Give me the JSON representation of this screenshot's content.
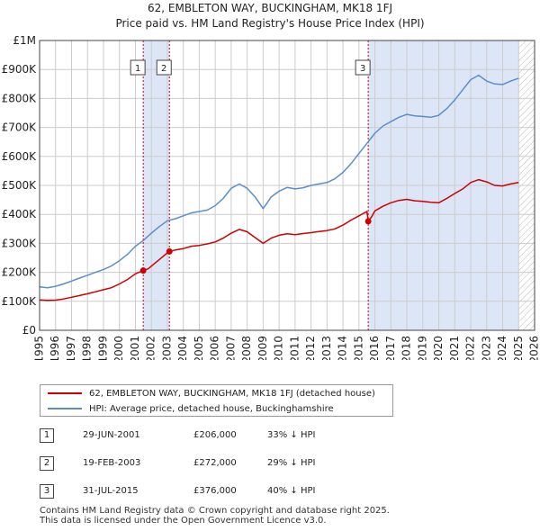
{
  "title": {
    "line1": "62, EMBLETON WAY, BUCKINGHAM, MK18 1FJ",
    "line2": "Price paid vs. HM Land Registry's House Price Index (HPI)"
  },
  "colors": {
    "price_paid": "#cc0000",
    "hpi": "#5b8ec9",
    "shade": "#dde6f6",
    "marker_line": "#cc0000",
    "grid": "#cccccc"
  },
  "legend": {
    "price_label": "62, EMBLETON WAY, BUCKINGHAM, MK18 1FJ (detached house)",
    "hpi_label": "HPI: Average price, detached house, Buckinghamshire"
  },
  "transactions": [
    {
      "num": "1",
      "date": "29-JUN-2001",
      "price": "£206,000",
      "hpi": "33% ↓ HPI"
    },
    {
      "num": "2",
      "date": "19-FEB-2003",
      "price": "£272,000",
      "hpi": "29% ↓ HPI"
    },
    {
      "num": "3",
      "date": "31-JUL-2015",
      "price": "£376,000",
      "hpi": "40% ↓ HPI"
    }
  ],
  "footer": {
    "line1": "Contains HM Land Registry data © Crown copyright and database right 2025.",
    "line2": "This data is licensed under the Open Government Licence v3.0."
  },
  "chart_data": {
    "type": "line",
    "title": "62, EMBLETON WAY, BUCKINGHAM, MK18 1FJ",
    "subtitle": "Price paid vs. HM Land Registry's House Price Index (HPI)",
    "xlabel": "",
    "ylabel": "",
    "xlim": [
      1995,
      2026
    ],
    "ylim": [
      0,
      1000000
    ],
    "grid": true,
    "x_ticks": [
      1995,
      1996,
      1997,
      1998,
      1999,
      2000,
      2001,
      2002,
      2003,
      2004,
      2005,
      2006,
      2007,
      2008,
      2009,
      2010,
      2011,
      2012,
      2013,
      2014,
      2015,
      2016,
      2017,
      2018,
      2019,
      2020,
      2021,
      2022,
      2023,
      2024,
      2025,
      2026
    ],
    "y_ticks": [
      {
        "value": 0,
        "label": "£0"
      },
      {
        "value": 100000,
        "label": "£100K"
      },
      {
        "value": 200000,
        "label": "£200K"
      },
      {
        "value": 300000,
        "label": "£300K"
      },
      {
        "value": 400000,
        "label": "£400K"
      },
      {
        "value": 500000,
        "label": "£500K"
      },
      {
        "value": 600000,
        "label": "£600K"
      },
      {
        "value": 700000,
        "label": "£700K"
      },
      {
        "value": 800000,
        "label": "£800K"
      },
      {
        "value": 900000,
        "label": "£900K"
      },
      {
        "value": 1000000,
        "label": "£1M"
      }
    ],
    "shaded_ranges": [
      [
        2001.49,
        2003.13
      ],
      [
        2015.58,
        2025.0
      ]
    ],
    "hatched_range": [
      2025.0,
      2026.0
    ],
    "markers": [
      {
        "label": "1",
        "x": 2001.49,
        "y": 206000
      },
      {
        "label": "2",
        "x": 2003.13,
        "y": 272000
      },
      {
        "label": "3",
        "x": 2015.58,
        "y": 376000
      }
    ],
    "series": [
      {
        "name": "62, EMBLETON WAY, BUCKINGHAM, MK18 1FJ (detached house)",
        "color": "#cc0000",
        "x": [
          1995,
          1995.5,
          1996,
          1996.5,
          1997,
          1997.5,
          1998,
          1998.5,
          1999,
          1999.5,
          2000,
          2000.5,
          2001,
          2001.49,
          2001.8,
          2002.3,
          2002.8,
          2003.13,
          2003.5,
          2004,
          2004.5,
          2005,
          2005.5,
          2006,
          2006.5,
          2007,
          2007.5,
          2008,
          2008.5,
          2009,
          2009.5,
          2010,
          2010.5,
          2011,
          2011.5,
          2012,
          2012.5,
          2013,
          2013.5,
          2014,
          2014.5,
          2015,
          2015.5,
          2015.58,
          2015.8,
          2016,
          2016.5,
          2017,
          2017.5,
          2018,
          2018.5,
          2019,
          2019.5,
          2020,
          2020.5,
          2021,
          2021.5,
          2022,
          2022.5,
          2023,
          2023.5,
          2024,
          2024.5,
          2025
        ],
        "y": [
          105000,
          103000,
          104000,
          108000,
          114000,
          120000,
          126000,
          133000,
          140000,
          147000,
          160000,
          175000,
          195000,
          206000,
          212000,
          235000,
          258000,
          272000,
          277000,
          282000,
          290000,
          293000,
          298000,
          305000,
          318000,
          335000,
          348000,
          340000,
          320000,
          300000,
          318000,
          328000,
          333000,
          330000,
          334000,
          337000,
          341000,
          344000,
          350000,
          363000,
          380000,
          395000,
          410000,
          376000,
          392000,
          412000,
          428000,
          440000,
          448000,
          452000,
          447000,
          445000,
          442000,
          440000,
          455000,
          472000,
          488000,
          510000,
          520000,
          512000,
          500000,
          498000,
          505000,
          510000
        ]
      },
      {
        "name": "HPI: Average price, detached house, Buckinghamshire",
        "color": "#5b8ec9",
        "x": [
          1995,
          1995.5,
          1996,
          1996.5,
          1997,
          1997.5,
          1998,
          1998.5,
          1999,
          1999.5,
          2000,
          2000.5,
          2001,
          2001.5,
          2002,
          2002.5,
          2003,
          2003.5,
          2004,
          2004.5,
          2005,
          2005.5,
          2006,
          2006.5,
          2007,
          2007.5,
          2008,
          2008.5,
          2009,
          2009.5,
          2010,
          2010.5,
          2011,
          2011.5,
          2012,
          2012.5,
          2013,
          2013.5,
          2014,
          2014.5,
          2015,
          2015.5,
          2016,
          2016.5,
          2017,
          2017.5,
          2018,
          2018.5,
          2019,
          2019.5,
          2020,
          2020.5,
          2021,
          2021.5,
          2022,
          2022.5,
          2023,
          2023.5,
          2024,
          2024.5,
          2025
        ],
        "y": [
          150000,
          147000,
          152000,
          160000,
          170000,
          180000,
          190000,
          200000,
          210000,
          222000,
          240000,
          262000,
          290000,
          310000,
          335000,
          358000,
          378000,
          385000,
          395000,
          405000,
          410000,
          415000,
          430000,
          455000,
          490000,
          505000,
          490000,
          460000,
          420000,
          460000,
          480000,
          493000,
          488000,
          492000,
          500000,
          505000,
          510000,
          523000,
          545000,
          575000,
          610000,
          645000,
          680000,
          705000,
          720000,
          735000,
          745000,
          740000,
          738000,
          735000,
          742000,
          765000,
          795000,
          830000,
          865000,
          880000,
          860000,
          850000,
          848000,
          860000,
          870000
        ]
      }
    ]
  }
}
